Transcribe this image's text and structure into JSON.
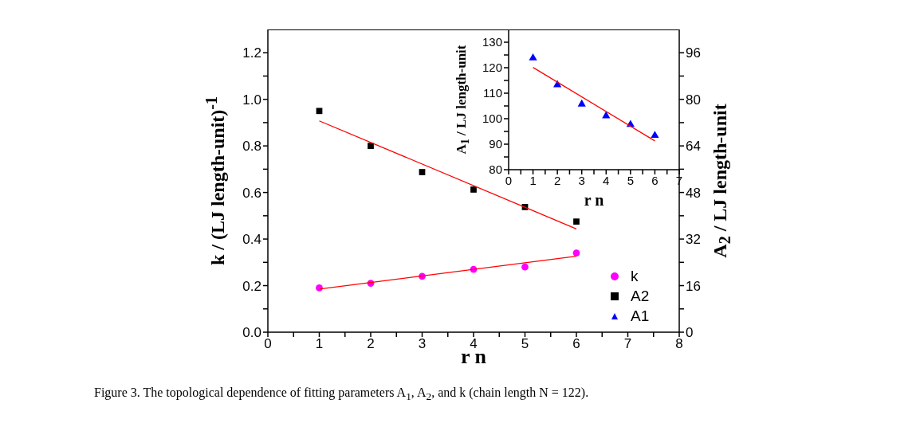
{
  "chart_data": [
    {
      "type": "scatter",
      "xlabel": "r n",
      "ylabel": "k / (LJ length-unit)$^{-1}$",
      "y2label": "A$_{2}$ / LJ length-unit",
      "xlim": [
        0,
        8
      ],
      "xticks": [
        0,
        {
          "value": 0.5,
          "label": null
        },
        1,
        {
          "value": 1.5,
          "label": null
        },
        2,
        {
          "value": 2.5,
          "label": null
        },
        3,
        {
          "value": 3.5,
          "label": null
        },
        4,
        {
          "value": 4.5,
          "label": null
        },
        5,
        {
          "value": 5.5,
          "label": null
        },
        6,
        {
          "value": 6.5,
          "label": null
        },
        7,
        {
          "value": 7.5,
          "label": null
        },
        8
      ],
      "ylim": [
        0,
        1.3
      ],
      "yticks": [
        {
          "value": 0,
          "label": "0.0"
        },
        {
          "value": 0.1,
          "label": null
        },
        0.2,
        {
          "value": 0.3,
          "label": null
        },
        0.4,
        {
          "value": 0.5,
          "label": null
        },
        0.6,
        {
          "value": 0.7,
          "label": null
        },
        0.8,
        {
          "value": 0.9,
          "label": null
        },
        {
          "value": 1,
          "label": "1.0"
        },
        {
          "value": 1.1,
          "label": null
        },
        1.2
      ],
      "y2lim": [
        0,
        104
      ],
      "y2ticks": [
        0,
        {
          "value": 8,
          "label": null
        },
        16,
        {
          "value": 24,
          "label": null
        },
        32,
        {
          "value": 40,
          "label": null
        },
        48,
        {
          "value": 56,
          "label": null
        },
        64,
        {
          "value": 72,
          "label": null
        },
        80,
        {
          "value": 88,
          "label": null
        },
        96
      ],
      "legend": "bottom right",
      "annotations": [
        "Figure 3. The topological dependence of fitting parameters A$_{1}$, A$_{2}$, and k (chain length N = 122)."
      ],
      "series": [
        {
          "name": "k",
          "type": "scatter",
          "color": "#ff00ff",
          "marker": "circle",
          "x": [
            1,
            2,
            3,
            4,
            5,
            6
          ],
          "values": [
            0.19,
            0.21,
            0.24,
            0.27,
            0.28,
            0.34
          ]
        },
        {
          "type": "line",
          "color": "#ff0000",
          "marker": "none",
          "x": [
            1,
            6
          ],
          "values": [
            0.185,
            0.326
          ]
        },
        {
          "name": "A2",
          "type": "scatter",
          "color": "#000000",
          "marker": "square",
          "axis": "y2",
          "x": [
            1,
            2,
            3,
            4,
            5,
            6
          ],
          "values": [
            76,
            64,
            55,
            49,
            43,
            38
          ]
        },
        {
          "type": "line",
          "color": "#ff0000",
          "marker": "none",
          "axis": "y2",
          "x": [
            1,
            6
          ],
          "values": [
            72.6,
            35.5
          ]
        }
      ]
    },
    {
      "type": "scatter",
      "xlabel": "r n",
      "ylabel": "A$_{1}$ / LJ length-unit",
      "xlim": [
        0,
        7
      ],
      "xticks": [
        0,
        {
          "value": 0.5,
          "label": null
        },
        1,
        {
          "value": 1.5,
          "label": null
        },
        2,
        {
          "value": 2.5,
          "label": null
        },
        3,
        {
          "value": 3.5,
          "label": null
        },
        4,
        {
          "value": 4.5,
          "label": null
        },
        5,
        {
          "value": 5.5,
          "label": null
        },
        6,
        {
          "value": 6.5,
          "label": null
        },
        7
      ],
      "ylim": [
        80,
        135
      ],
      "yticks": [
        80,
        {
          "value": 85,
          "label": null
        },
        90,
        {
          "value": 95,
          "label": null
        },
        100,
        {
          "value": 105,
          "label": null
        },
        110,
        {
          "value": 115,
          "label": null
        },
        120,
        {
          "value": 125,
          "label": null
        },
        130
      ],
      "series": [
        {
          "name": "A1",
          "type": "scatter",
          "color": "#0000ff",
          "marker": "triangle",
          "x": [
            1,
            2,
            3,
            4,
            5,
            6
          ],
          "values": [
            123.8,
            113.3,
            105.7,
            101.1,
            97.7,
            93.4
          ]
        },
        {
          "type": "line",
          "color": "#ff0000",
          "marker": "none",
          "x": [
            1,
            6
          ],
          "values": [
            120.1,
            91.3
          ]
        }
      ]
    }
  ]
}
